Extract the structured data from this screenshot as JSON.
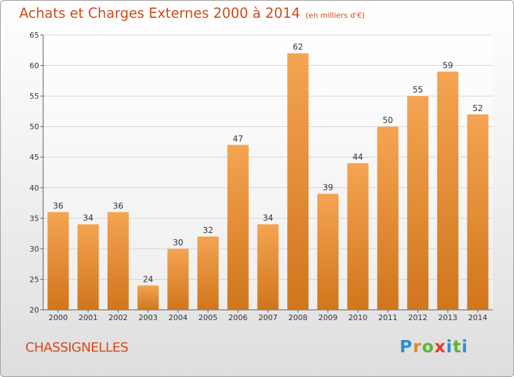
{
  "title": "Achats et Charges Externes 2000 à 2014",
  "subtitle": "(en milliers d'€)",
  "commune": "CHASSIGNELLES",
  "logo": "Proxiti",
  "colors": {
    "bar_top": "#f5a452",
    "bar_bottom": "#d0761c",
    "title": "#cf4c1a"
  },
  "chart_data": {
    "type": "bar",
    "title": "Achats et Charges Externes 2000 à 2014",
    "subtitle": "(en milliers d'€)",
    "categories": [
      "2000",
      "2001",
      "2002",
      "2003",
      "2004",
      "2005",
      "2006",
      "2007",
      "2008",
      "2009",
      "2010",
      "2011",
      "2012",
      "2013",
      "2014"
    ],
    "values": [
      36,
      34,
      36,
      24,
      30,
      32,
      47,
      34,
      62,
      39,
      44,
      50,
      55,
      59,
      52
    ],
    "ylim": [
      20,
      65
    ],
    "yticks": [
      20,
      25,
      30,
      35,
      40,
      45,
      50,
      55,
      60,
      65
    ],
    "grid": true,
    "xlabel": "",
    "ylabel": ""
  }
}
